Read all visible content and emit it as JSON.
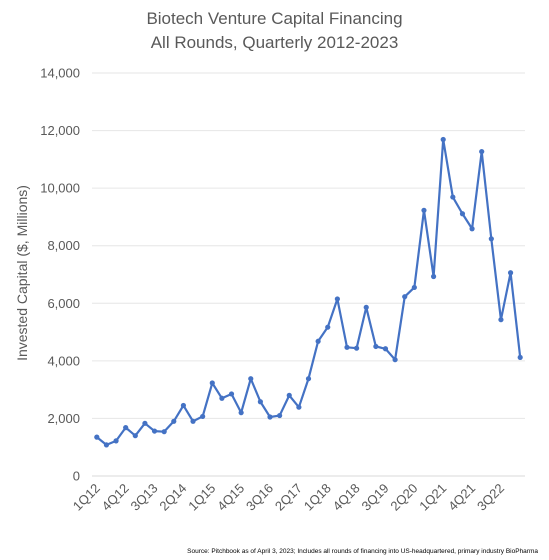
{
  "chart_data": {
    "type": "line",
    "title_lines": [
      "Biotech Venture Capital Financing",
      "All Rounds, Quarterly 2012-2023"
    ],
    "ylabel": "Invested Capital ($, Millions)",
    "xlabel": "",
    "ylim": [
      0,
      14000
    ],
    "yticks": [
      0,
      2000,
      4000,
      6000,
      8000,
      10000,
      12000,
      14000
    ],
    "ytick_labels": [
      "0",
      "2,000",
      "4,000",
      "6,000",
      "8,000",
      "10,000",
      "12,000",
      "14,000"
    ],
    "grid": true,
    "legend": "none",
    "line_color": "#4472C4",
    "categories": [
      "1Q12",
      "2Q12",
      "3Q12",
      "4Q12",
      "1Q13",
      "2Q13",
      "3Q13",
      "4Q13",
      "1Q14",
      "2Q14",
      "3Q14",
      "4Q14",
      "1Q15",
      "2Q15",
      "3Q15",
      "4Q15",
      "1Q16",
      "2Q16",
      "3Q16",
      "4Q16",
      "1Q17",
      "2Q17",
      "3Q17",
      "4Q17",
      "1Q18",
      "2Q18",
      "3Q18",
      "4Q18",
      "1Q19",
      "2Q19",
      "3Q19",
      "4Q19",
      "1Q20",
      "2Q20",
      "3Q20",
      "4Q20",
      "1Q21",
      "2Q21",
      "3Q21",
      "4Q21",
      "1Q22",
      "2Q22",
      "3Q22",
      "4Q22",
      "1Q23"
    ],
    "values": [
      1350,
      1080,
      1220,
      1680,
      1400,
      1830,
      1560,
      1540,
      1900,
      2450,
      1900,
      2070,
      3230,
      2700,
      2850,
      2200,
      3380,
      2580,
      2050,
      2100,
      2800,
      2390,
      3380,
      4680,
      5170,
      6150,
      4470,
      4440,
      5860,
      4500,
      4420,
      4040,
      6230,
      6550,
      9230,
      6930,
      11690,
      9690,
      9110,
      8590,
      11270,
      8240,
      5430,
      7060,
      4120
    ],
    "tick_labels": [
      "1Q12",
      "4Q12",
      "3Q13",
      "2Q14",
      "1Q15",
      "4Q15",
      "3Q16",
      "2Q17",
      "1Q18",
      "4Q18",
      "3Q19",
      "2Q20",
      "1Q21",
      "4Q21",
      "3Q22"
    ],
    "tick_label_index": [
      0,
      3,
      6,
      9,
      12,
      15,
      18,
      21,
      24,
      27,
      30,
      33,
      36,
      39,
      42
    ]
  },
  "source_note": "Source: Pitchbook as of April 3, 2023; Includes all rounds of financing into US-headquartered, primary industry BioPharma"
}
